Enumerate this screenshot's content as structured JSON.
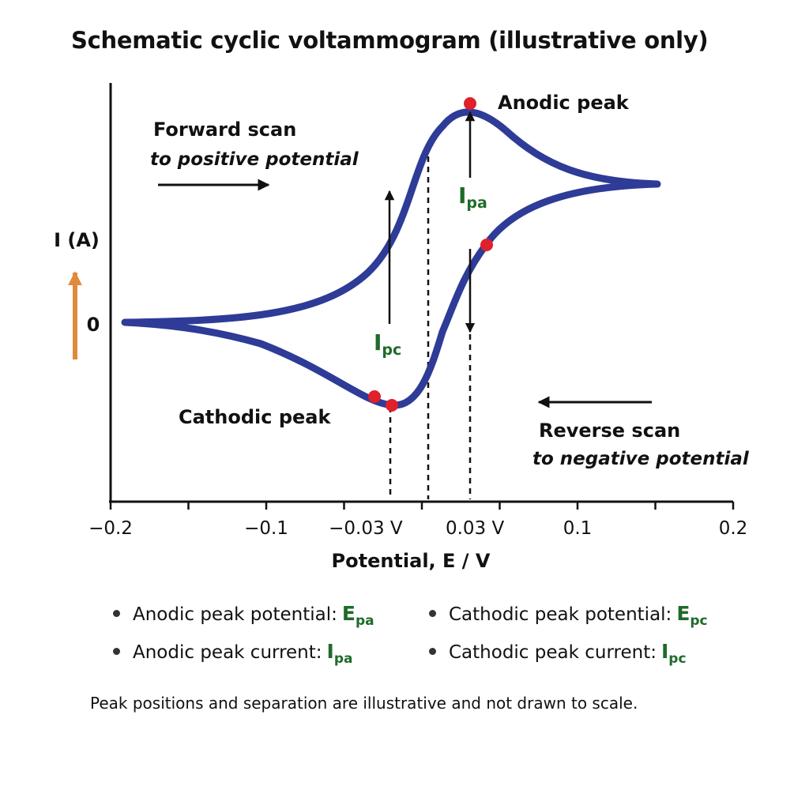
{
  "title": "Schematic cyclic voltammogram (illustrative only)",
  "chart_data": {
    "type": "line",
    "title": "Schematic cyclic voltammogram (illustrative only)",
    "xlabel": "Potential, E / V",
    "ylabel": "I (A)",
    "xlim": [
      -0.2,
      0.2
    ],
    "x_ticks": [
      {
        "value": -0.2,
        "label": "−0.2"
      },
      {
        "value": -0.1,
        "label": "−0.1"
      },
      {
        "value": -0.03,
        "label": "−0.03 V"
      },
      {
        "value": 0.03,
        "label": "0.03 V"
      },
      {
        "value": 0.1,
        "label": "0.1"
      },
      {
        "value": 0.2,
        "label": "0.2"
      }
    ],
    "y_zero_label": "0",
    "series_color": "#2e3b97",
    "marker_color": "#e0202a",
    "annotations": {
      "anodic_peak": "Anodic peak",
      "cathodic_peak": "Cathodic peak",
      "forward_scan": "Forward scan",
      "forward_scan_sub": "to positive potential",
      "reverse_scan": "Reverse scan",
      "reverse_scan_sub": "to negative potential",
      "ipa_main": "I",
      "ipa_sub": "pa",
      "ipc_main": "I",
      "ipc_sub": "pc"
    }
  },
  "legend": {
    "anodic_potential": {
      "label": "Anodic peak potential:",
      "sym": "E",
      "sub": "pa"
    },
    "cathodic_potential": {
      "label": "Cathodic peak potential:",
      "sym": "E",
      "sub": "pc"
    },
    "anodic_current": {
      "label": "Anodic peak current:",
      "sym": "I",
      "sub": "pa"
    },
    "cathodic_current": {
      "label": "Cathodic peak current:",
      "sym": "I",
      "sub": "pc"
    }
  },
  "footnote": "Peak positions and separation are illustrative and not drawn to scale."
}
